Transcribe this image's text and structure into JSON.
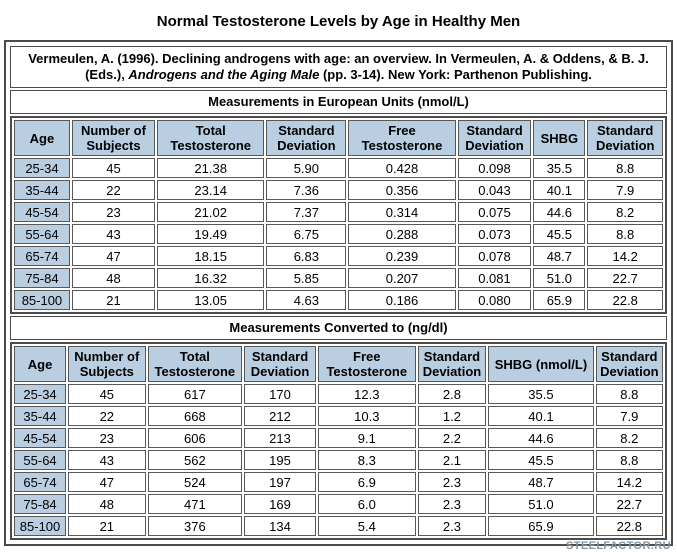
{
  "page": {
    "title": "Normal Testosterone Levels by Age in Healthy Men",
    "watermark": "STEELFACTOR.RU"
  },
  "citation": {
    "prefix": "Vermeulen, A. (1996). Declining androgens with age: an overview. In Vermeulen, A. & Oddens, & B. J. (Eds.), ",
    "italic": "Androgens and the Aging Male",
    "suffix": " (pp. 3-14). New York: Parthenon Publishing."
  },
  "tables": [
    {
      "section_title": "Measurements in European Units (nmol/L)",
      "headers": [
        "Age",
        "Number of Subjects",
        "Total Testosterone",
        "Standard Deviation",
        "Free Testosterone",
        "Standard Deviation",
        "SHBG",
        "Standard Deviation"
      ],
      "rows": [
        [
          "25-34",
          "45",
          "21.38",
          "5.90",
          "0.428",
          "0.098",
          "35.5",
          "8.8"
        ],
        [
          "35-44",
          "22",
          "23.14",
          "7.36",
          "0.356",
          "0.043",
          "40.1",
          "7.9"
        ],
        [
          "45-54",
          "23",
          "21.02",
          "7.37",
          "0.314",
          "0.075",
          "44.6",
          "8.2"
        ],
        [
          "55-64",
          "43",
          "19.49",
          "6.75",
          "0.288",
          "0.073",
          "45.5",
          "8.8"
        ],
        [
          "65-74",
          "47",
          "18.15",
          "6.83",
          "0.239",
          "0.078",
          "48.7",
          "14.2"
        ],
        [
          "75-84",
          "48",
          "16.32",
          "5.85",
          "0.207",
          "0.081",
          "51.0",
          "22.7"
        ],
        [
          "85-100",
          "21",
          "13.05",
          "4.63",
          "0.186",
          "0.080",
          "65.9",
          "22.8"
        ]
      ]
    },
    {
      "section_title": "Measurements Converted to (ng/dl)",
      "headers": [
        "Age",
        "Number of Subjects",
        "Total Testosterone",
        "Standard Deviation",
        "Free Testosterone",
        "Standard Deviation",
        "SHBG (nmol/L)",
        "Standard Deviation"
      ],
      "rows": [
        [
          "25-34",
          "45",
          "617",
          "170",
          "12.3",
          "2.8",
          "35.5",
          "8.8"
        ],
        [
          "35-44",
          "22",
          "668",
          "212",
          "10.3",
          "1.2",
          "40.1",
          "7.9"
        ],
        [
          "45-54",
          "23",
          "606",
          "213",
          "9.1",
          "2.2",
          "44.6",
          "8.2"
        ],
        [
          "55-64",
          "43",
          "562",
          "195",
          "8.3",
          "2.1",
          "45.5",
          "8.8"
        ],
        [
          "65-74",
          "47",
          "524",
          "197",
          "6.9",
          "2.3",
          "48.7",
          "14.2"
        ],
        [
          "75-84",
          "48",
          "471",
          "169",
          "6.0",
          "2.3",
          "51.0",
          "22.7"
        ],
        [
          "85-100",
          "21",
          "376",
          "134",
          "5.4",
          "2.3",
          "65.9",
          "22.8"
        ]
      ]
    }
  ],
  "colors": {
    "header_cell_bg": "#b9cfe1",
    "border": "#4c4c4c",
    "watermark": "#8095a8"
  }
}
